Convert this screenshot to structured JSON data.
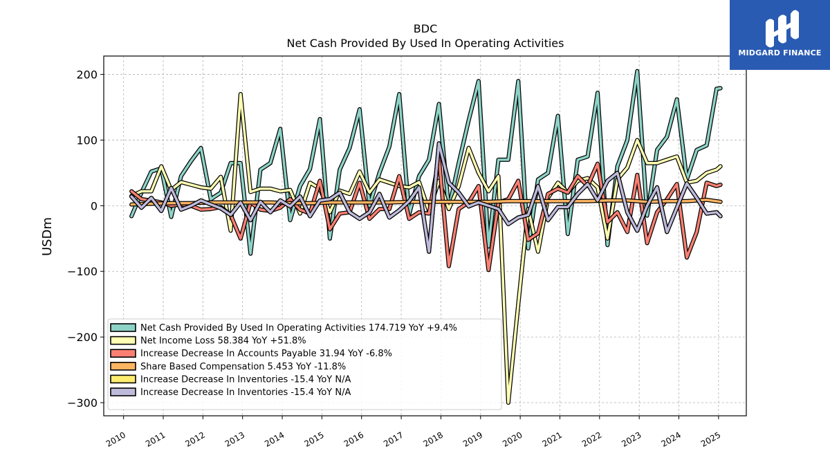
{
  "brand": {
    "name": "MIDGARD FINANCE"
  },
  "chart_data": {
    "type": "line",
    "title": "BDC",
    "subtitle": "Net Cash Provided By Used In Operating Activities",
    "ylabel": "USDm",
    "xlabel": "",
    "xlim": [
      2009.5,
      2025.7
    ],
    "ylim": [
      -320,
      228
    ],
    "xticks": [
      2010,
      2011,
      2012,
      2013,
      2014,
      2015,
      2016,
      2017,
      2018,
      2019,
      2020,
      2021,
      2022,
      2023,
      2024,
      2025
    ],
    "yticks": [
      -300,
      -200,
      -100,
      0,
      100,
      200
    ],
    "ytick_labels": [
      "−300",
      "−200",
      "−100",
      "0",
      "100",
      "200"
    ],
    "grid": true,
    "legend_position": "lower-left",
    "series": [
      {
        "name": "Net Cash Provided By Used In Operating Activities  174.719 YoY +9.4%",
        "color": "#8dd3c7",
        "x": [
          2010.2,
          2010.45,
          2010.7,
          2010.95,
          2011.2,
          2011.45,
          2011.7,
          2011.95,
          2012.2,
          2012.45,
          2012.7,
          2012.95,
          2013.2,
          2013.45,
          2013.7,
          2013.95,
          2014.2,
          2014.45,
          2014.7,
          2014.95,
          2015.2,
          2015.45,
          2015.7,
          2015.95,
          2016.2,
          2016.45,
          2016.7,
          2016.95,
          2017.2,
          2017.45,
          2017.7,
          2017.95,
          2018.2,
          2018.45,
          2018.7,
          2018.95,
          2019.2,
          2019.45,
          2019.7,
          2019.95,
          2020.2,
          2020.45,
          2020.7,
          2020.95,
          2021.2,
          2021.45,
          2021.7,
          2021.95,
          2022.2,
          2022.45,
          2022.7,
          2022.95,
          2023.2,
          2023.45,
          2023.7,
          2023.95,
          2024.2,
          2024.45,
          2024.7,
          2024.95,
          2025.05
        ],
        "values": [
          -16,
          20,
          52,
          57,
          -17,
          45,
          68,
          88,
          10,
          20,
          65,
          65,
          -73,
          55,
          65,
          117,
          -22,
          30,
          56,
          132,
          -50,
          55,
          88,
          147,
          0,
          50,
          90,
          170,
          -13,
          45,
          70,
          155,
          -5,
          65,
          130,
          190,
          -62,
          70,
          70,
          190,
          -65,
          40,
          50,
          137,
          -43,
          70,
          75,
          172,
          -60,
          60,
          100,
          205,
          -15,
          85,
          105,
          162,
          40,
          85,
          92,
          178,
          179
        ]
      },
      {
        "name": "Net Income Loss  58.384 YoY +51.8%",
        "color": "#ffffb3",
        "x": [
          2010.2,
          2010.45,
          2010.7,
          2010.95,
          2011.2,
          2011.45,
          2011.7,
          2011.95,
          2012.2,
          2012.45,
          2012.7,
          2012.95,
          2013.2,
          2013.45,
          2013.7,
          2013.95,
          2014.2,
          2014.45,
          2014.7,
          2014.95,
          2015.2,
          2015.45,
          2015.7,
          2015.95,
          2016.2,
          2016.45,
          2016.7,
          2016.95,
          2017.2,
          2017.45,
          2017.7,
          2017.95,
          2018.2,
          2018.45,
          2018.7,
          2018.95,
          2019.2,
          2019.45,
          2019.7,
          2019.95,
          2020.2,
          2020.45,
          2020.7,
          2020.95,
          2021.2,
          2021.45,
          2021.7,
          2021.95,
          2022.2,
          2022.45,
          2022.7,
          2022.95,
          2023.2,
          2023.45,
          2023.7,
          2023.95,
          2024.2,
          2024.45,
          2024.7,
          2024.95,
          2025.05
        ],
        "values": [
          15,
          22,
          22,
          60,
          24,
          36,
          32,
          28,
          26,
          44,
          -38,
          170,
          21,
          26,
          26,
          22,
          24,
          -12,
          35,
          26,
          -10,
          23,
          18,
          52,
          20,
          40,
          35,
          30,
          28,
          36,
          -8,
          38,
          -5,
          30,
          88,
          50,
          22,
          45,
          -300,
          -150,
          -5,
          -70,
          12,
          35,
          20,
          38,
          42,
          28,
          -50,
          40,
          58,
          100,
          65,
          65,
          70,
          75,
          35,
          38,
          50,
          55,
          60
        ]
      },
      {
        "name": "Increase Decrease In Accounts Payable  31.94 YoY -6.8%",
        "color": "#fb8072",
        "x": [
          2010.2,
          2010.45,
          2010.7,
          2010.95,
          2011.2,
          2011.45,
          2011.7,
          2011.95,
          2012.2,
          2012.45,
          2012.7,
          2012.95,
          2013.2,
          2013.45,
          2013.7,
          2013.95,
          2014.2,
          2014.45,
          2014.7,
          2014.95,
          2015.2,
          2015.45,
          2015.7,
          2015.95,
          2016.2,
          2016.45,
          2016.7,
          2016.95,
          2017.2,
          2017.45,
          2017.7,
          2017.95,
          2018.2,
          2018.45,
          2018.7,
          2018.95,
          2019.2,
          2019.45,
          2019.7,
          2019.95,
          2020.2,
          2020.45,
          2020.7,
          2020.95,
          2021.2,
          2021.45,
          2021.7,
          2021.95,
          2022.2,
          2022.45,
          2022.7,
          2022.95,
          2023.2,
          2023.45,
          2023.7,
          2023.95,
          2024.2,
          2024.45,
          2024.7,
          2024.95,
          2025.05
        ],
        "values": [
          22,
          10,
          8,
          5,
          0,
          2,
          0,
          -6,
          -5,
          -2,
          -14,
          -50,
          5,
          -6,
          -8,
          -3,
          10,
          -6,
          -12,
          38,
          -36,
          -12,
          -10,
          35,
          -20,
          -5,
          -5,
          45,
          -20,
          -10,
          -12,
          72,
          -92,
          -5,
          5,
          30,
          -98,
          5,
          10,
          38,
          -52,
          -42,
          18,
          26,
          20,
          45,
          30,
          64,
          -25,
          -10,
          -40,
          47,
          -57,
          -10,
          10,
          33,
          -79,
          -40,
          35,
          30,
          32
        ]
      },
      {
        "name": "Share Based Compensation  5.453 YoY -11.8%",
        "color": "#fdb462",
        "x": [
          2010.2,
          2010.7,
          2011.2,
          2011.7,
          2012.2,
          2012.7,
          2013.2,
          2013.7,
          2014.2,
          2014.7,
          2015.2,
          2015.7,
          2016.2,
          2016.7,
          2017.2,
          2017.7,
          2018.2,
          2018.7,
          2019.2,
          2019.7,
          2020.2,
          2020.7,
          2021.2,
          2021.7,
          2022.2,
          2022.7,
          2023.2,
          2023.7,
          2024.2,
          2024.7,
          2025.05
        ],
        "values": [
          2,
          3,
          4,
          4,
          5,
          5,
          5,
          5,
          4,
          4,
          5,
          5,
          5,
          5,
          6,
          6,
          6,
          6,
          6,
          7,
          7,
          7,
          7,
          7,
          8,
          8,
          6,
          7,
          7,
          9,
          6
        ]
      },
      {
        "name": "Increase Decrease In Inventories  -15.4 YoY N/A",
        "color": "#ffed6f",
        "x": [
          2010.2,
          2010.45,
          2010.7,
          2010.95,
          2011.2,
          2011.45,
          2011.7,
          2011.95,
          2012.2,
          2012.45,
          2012.7,
          2012.95,
          2013.2,
          2013.45,
          2013.7,
          2013.95,
          2014.2,
          2014.45,
          2014.7,
          2014.95,
          2015.2,
          2015.45,
          2015.7,
          2015.95,
          2016.2,
          2016.45,
          2016.7,
          2016.95,
          2017.2,
          2017.45,
          2017.7,
          2017.95,
          2018.2,
          2018.45,
          2018.7,
          2018.95,
          2019.2,
          2019.45,
          2019.7,
          2019.95,
          2020.2,
          2020.45,
          2020.7,
          2020.95,
          2021.2,
          2021.45,
          2021.7,
          2021.95,
          2022.2,
          2022.45,
          2022.7,
          2022.95,
          2023.2,
          2023.45,
          2023.7,
          2023.95,
          2024.2,
          2024.45,
          2024.7,
          2024.95,
          2025.05
        ],
        "values": [
          14,
          -3,
          12,
          -8,
          27,
          -6,
          0,
          8,
          2,
          -4,
          -14,
          5,
          -22,
          6,
          -10,
          8,
          -1,
          14,
          -16,
          8,
          10,
          20,
          -10,
          -20,
          -10,
          18,
          -18,
          -7,
          7,
          28,
          -70,
          95,
          35,
          20,
          -1,
          5,
          0,
          -5,
          -28,
          -18,
          -14,
          30,
          -22,
          -2,
          -2,
          18,
          33,
          8,
          38,
          50,
          -10,
          -38,
          0,
          28,
          -40,
          -3,
          34,
          12,
          -12,
          -10,
          -16
        ]
      },
      {
        "name": "Increase Decrease In Inventories  -15.4 YoY N/A",
        "color": "#bebada",
        "x": [
          2010.2,
          2010.45,
          2010.7,
          2010.95,
          2011.2,
          2011.45,
          2011.7,
          2011.95,
          2012.2,
          2012.45,
          2012.7,
          2012.95,
          2013.2,
          2013.45,
          2013.7,
          2013.95,
          2014.2,
          2014.45,
          2014.7,
          2014.95,
          2015.2,
          2015.45,
          2015.7,
          2015.95,
          2016.2,
          2016.45,
          2016.7,
          2016.95,
          2017.2,
          2017.45,
          2017.7,
          2017.95,
          2018.2,
          2018.45,
          2018.7,
          2018.95,
          2019.2,
          2019.45,
          2019.7,
          2019.95,
          2020.2,
          2020.45,
          2020.7,
          2020.95,
          2021.2,
          2021.45,
          2021.7,
          2021.95,
          2022.2,
          2022.45,
          2022.7,
          2022.95,
          2023.2,
          2023.45,
          2023.7,
          2023.95,
          2024.2,
          2024.45,
          2024.7,
          2024.95,
          2025.05
        ],
        "values": [
          14,
          -3,
          12,
          -8,
          27,
          -6,
          0,
          8,
          2,
          -4,
          -14,
          5,
          -22,
          6,
          -10,
          8,
          -1,
          14,
          -16,
          8,
          10,
          20,
          -10,
          -20,
          -10,
          18,
          -18,
          -7,
          7,
          28,
          -70,
          95,
          35,
          20,
          -1,
          5,
          0,
          -5,
          -28,
          -18,
          -14,
          30,
          -22,
          -2,
          -2,
          18,
          33,
          8,
          38,
          50,
          -10,
          -38,
          0,
          28,
          -40,
          -3,
          34,
          12,
          -12,
          -10,
          -16
        ]
      }
    ]
  }
}
